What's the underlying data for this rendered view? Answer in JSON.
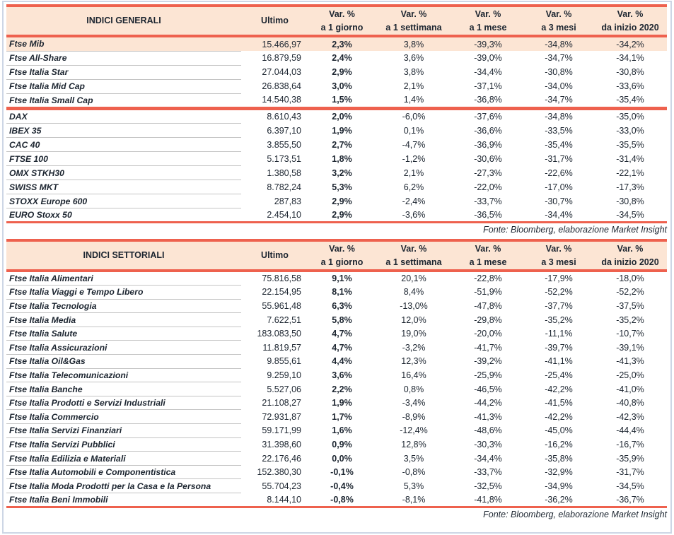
{
  "colors": {
    "accent": "#ee614e",
    "peach": "#fce5d4",
    "text": "#1c2530",
    "sep": "#c4c4c4",
    "frame": "#cdd6e5"
  },
  "tables": [
    {
      "name_header": "INDICI GENERALI",
      "ultimo_header": "Ultimo",
      "var_headers": [
        {
          "l1": "Var. %",
          "l2": "a 1 giorno"
        },
        {
          "l1": "Var. %",
          "l2": "a 1 settimana"
        },
        {
          "l1": "Var. %",
          "l2": "a 1 mese"
        },
        {
          "l1": "Var. %",
          "l2": "a 3 mesi"
        },
        {
          "l1": "Var. %",
          "l2": "da inizio 2020"
        }
      ],
      "groups": [
        {
          "rows": [
            {
              "name": "Ftse Mib",
              "highlight": true,
              "ultimo": "15.466,97",
              "d1": "2,3%",
              "w1": "3,8%",
              "m1": "-39,3%",
              "m3": "-34,8%",
              "ytd": "-34,2%"
            },
            {
              "name": "Ftse All-Share",
              "ultimo": "16.879,59",
              "d1": "2,4%",
              "w1": "3,6%",
              "m1": "-39,0%",
              "m3": "-34,7%",
              "ytd": "-34,1%"
            },
            {
              "name": "Ftse Italia Star",
              "ultimo": "27.044,03",
              "d1": "2,9%",
              "w1": "3,8%",
              "m1": "-34,4%",
              "m3": "-30,8%",
              "ytd": "-30,8%"
            },
            {
              "name": "Ftse Italia Mid Cap",
              "ultimo": "26.838,64",
              "d1": "3,0%",
              "w1": "2,1%",
              "m1": "-37,1%",
              "m3": "-34,0%",
              "ytd": "-33,6%"
            },
            {
              "name": "Ftse Italia Small Cap",
              "ultimo": "14.540,38",
              "d1": "1,5%",
              "w1": "1,4%",
              "m1": "-36,8%",
              "m3": "-34,7%",
              "ytd": "-35,4%"
            }
          ]
        },
        {
          "rows": [
            {
              "name": "DAX",
              "ultimo": "8.610,43",
              "d1": "2,0%",
              "w1": "-6,0%",
              "m1": "-37,6%",
              "m3": "-34,8%",
              "ytd": "-35,0%"
            },
            {
              "name": "IBEX 35",
              "ultimo": "6.397,10",
              "d1": "1,9%",
              "w1": "0,1%",
              "m1": "-36,6%",
              "m3": "-33,5%",
              "ytd": "-33,0%"
            },
            {
              "name": "CAC 40",
              "ultimo": "3.855,50",
              "d1": "2,7%",
              "w1": "-4,7%",
              "m1": "-36,9%",
              "m3": "-35,4%",
              "ytd": "-35,5%"
            },
            {
              "name": "FTSE 100",
              "ultimo": "5.173,51",
              "d1": "1,8%",
              "w1": "-1,2%",
              "m1": "-30,6%",
              "m3": "-31,7%",
              "ytd": "-31,4%"
            },
            {
              "name": "OMX STKH30",
              "ultimo": "1.380,58",
              "d1": "3,2%",
              "w1": "2,1%",
              "m1": "-27,3%",
              "m3": "-22,6%",
              "ytd": "-22,1%"
            },
            {
              "name": "SWISS MKT",
              "ultimo": "8.782,24",
              "d1": "5,3%",
              "w1": "6,2%",
              "m1": "-22,0%",
              "m3": "-17,0%",
              "ytd": "-17,3%"
            },
            {
              "name": "STOXX Europe 600",
              "ultimo": "287,83",
              "d1": "2,9%",
              "w1": "-2,4%",
              "m1": "-33,7%",
              "m3": "-30,7%",
              "ytd": "-30,8%"
            },
            {
              "name": "EURO Stoxx 50",
              "ultimo": "2.454,10",
              "d1": "2,9%",
              "w1": "-3,6%",
              "m1": "-36,5%",
              "m3": "-34,4%",
              "ytd": "-34,5%"
            }
          ]
        }
      ],
      "source": "Fonte: Bloomberg, elaborazione Market Insight"
    },
    {
      "name_header": "INDICI SETTORIALI",
      "ultimo_header": "Ultimo",
      "var_headers": [
        {
          "l1": "Var. %",
          "l2": "a 1 giorno"
        },
        {
          "l1": "Var. %",
          "l2": "a 1 settimana"
        },
        {
          "l1": "Var. %",
          "l2": "a 1 mese"
        },
        {
          "l1": "Var. %",
          "l2": "a 3 mesi"
        },
        {
          "l1": "Var. %",
          "l2": "da inizio 2020"
        }
      ],
      "groups": [
        {
          "rows": [
            {
              "name": "Ftse Italia Alimentari",
              "ultimo": "75.816,58",
              "d1": "9,1%",
              "w1": "20,1%",
              "m1": "-22,8%",
              "m3": "-17,9%",
              "ytd": "-18,0%"
            },
            {
              "name": "Ftse Italia Viaggi e Tempo Libero",
              "ultimo": "22.154,95",
              "d1": "8,1%",
              "w1": "8,4%",
              "m1": "-51,9%",
              "m3": "-52,2%",
              "ytd": "-52,2%"
            },
            {
              "name": "Ftse Italia Tecnologia",
              "ultimo": "55.961,48",
              "d1": "6,3%",
              "w1": "-13,0%",
              "m1": "-47,8%",
              "m3": "-37,7%",
              "ytd": "-37,5%"
            },
            {
              "name": "Ftse Italia Media",
              "ultimo": "7.622,51",
              "d1": "5,8%",
              "w1": "12,0%",
              "m1": "-29,8%",
              "m3": "-35,2%",
              "ytd": "-35,2%"
            },
            {
              "name": "Ftse Italia Salute",
              "ultimo": "183.083,50",
              "d1": "4,7%",
              "w1": "19,0%",
              "m1": "-20,0%",
              "m3": "-11,1%",
              "ytd": "-10,7%"
            },
            {
              "name": "Ftse Italia Assicurazioni",
              "ultimo": "11.819,57",
              "d1": "4,7%",
              "w1": "-3,2%",
              "m1": "-41,7%",
              "m3": "-39,7%",
              "ytd": "-39,1%"
            },
            {
              "name": "Ftse Italia Oil&Gas",
              "ultimo": "9.855,61",
              "d1": "4,4%",
              "w1": "12,3%",
              "m1": "-39,2%",
              "m3": "-41,1%",
              "ytd": "-41,3%"
            },
            {
              "name": "Ftse Italia Telecomunicazioni",
              "ultimo": "9.259,10",
              "d1": "3,6%",
              "w1": "16,4%",
              "m1": "-25,9%",
              "m3": "-25,4%",
              "ytd": "-25,0%"
            },
            {
              "name": "Ftse Italia Banche",
              "ultimo": "5.527,06",
              "d1": "2,2%",
              "w1": "0,8%",
              "m1": "-46,5%",
              "m3": "-42,2%",
              "ytd": "-41,0%"
            },
            {
              "name": "Ftse Italia Prodotti e Servizi Industriali",
              "ultimo": "21.108,27",
              "d1": "1,9%",
              "w1": "-3,4%",
              "m1": "-44,2%",
              "m3": "-41,5%",
              "ytd": "-40,8%"
            },
            {
              "name": "Ftse Italia Commercio",
              "ultimo": "72.931,87",
              "d1": "1,7%",
              "w1": "-8,9%",
              "m1": "-41,3%",
              "m3": "-42,2%",
              "ytd": "-42,3%"
            },
            {
              "name": "Ftse Italia Servizi Finanziari",
              "ultimo": "59.171,99",
              "d1": "1,6%",
              "w1": "-12,4%",
              "m1": "-48,6%",
              "m3": "-45,0%",
              "ytd": "-44,4%"
            },
            {
              "name": "Ftse Italia Servizi Pubblici",
              "ultimo": "31.398,60",
              "d1": "0,9%",
              "w1": "12,8%",
              "m1": "-30,3%",
              "m3": "-16,2%",
              "ytd": "-16,7%"
            },
            {
              "name": "Ftse Italia Edilizia e Materiali",
              "ultimo": "22.176,46",
              "d1": "0,0%",
              "w1": "3,5%",
              "m1": "-34,4%",
              "m3": "-35,8%",
              "ytd": "-35,9%"
            },
            {
              "name": "Ftse Italia Automobili e Componentistica",
              "ultimo": "152.380,30",
              "d1": "-0,1%",
              "w1": "-0,8%",
              "m1": "-33,7%",
              "m3": "-32,9%",
              "ytd": "-31,7%"
            },
            {
              "name": "Ftse Italia Moda Prodotti per la Casa e la Persona",
              "ultimo": "55.704,23",
              "d1": "-0,4%",
              "w1": "5,3%",
              "m1": "-32,5%",
              "m3": "-34,9%",
              "ytd": "-34,5%"
            },
            {
              "name": "Ftse Italia Beni Immobili",
              "ultimo": "8.144,10",
              "d1": "-0,8%",
              "w1": "-8,1%",
              "m1": "-41,8%",
              "m3": "-36,2%",
              "ytd": "-36,7%"
            }
          ]
        }
      ],
      "source": "Fonte: Bloomberg, elaborazione Market Insight"
    }
  ]
}
